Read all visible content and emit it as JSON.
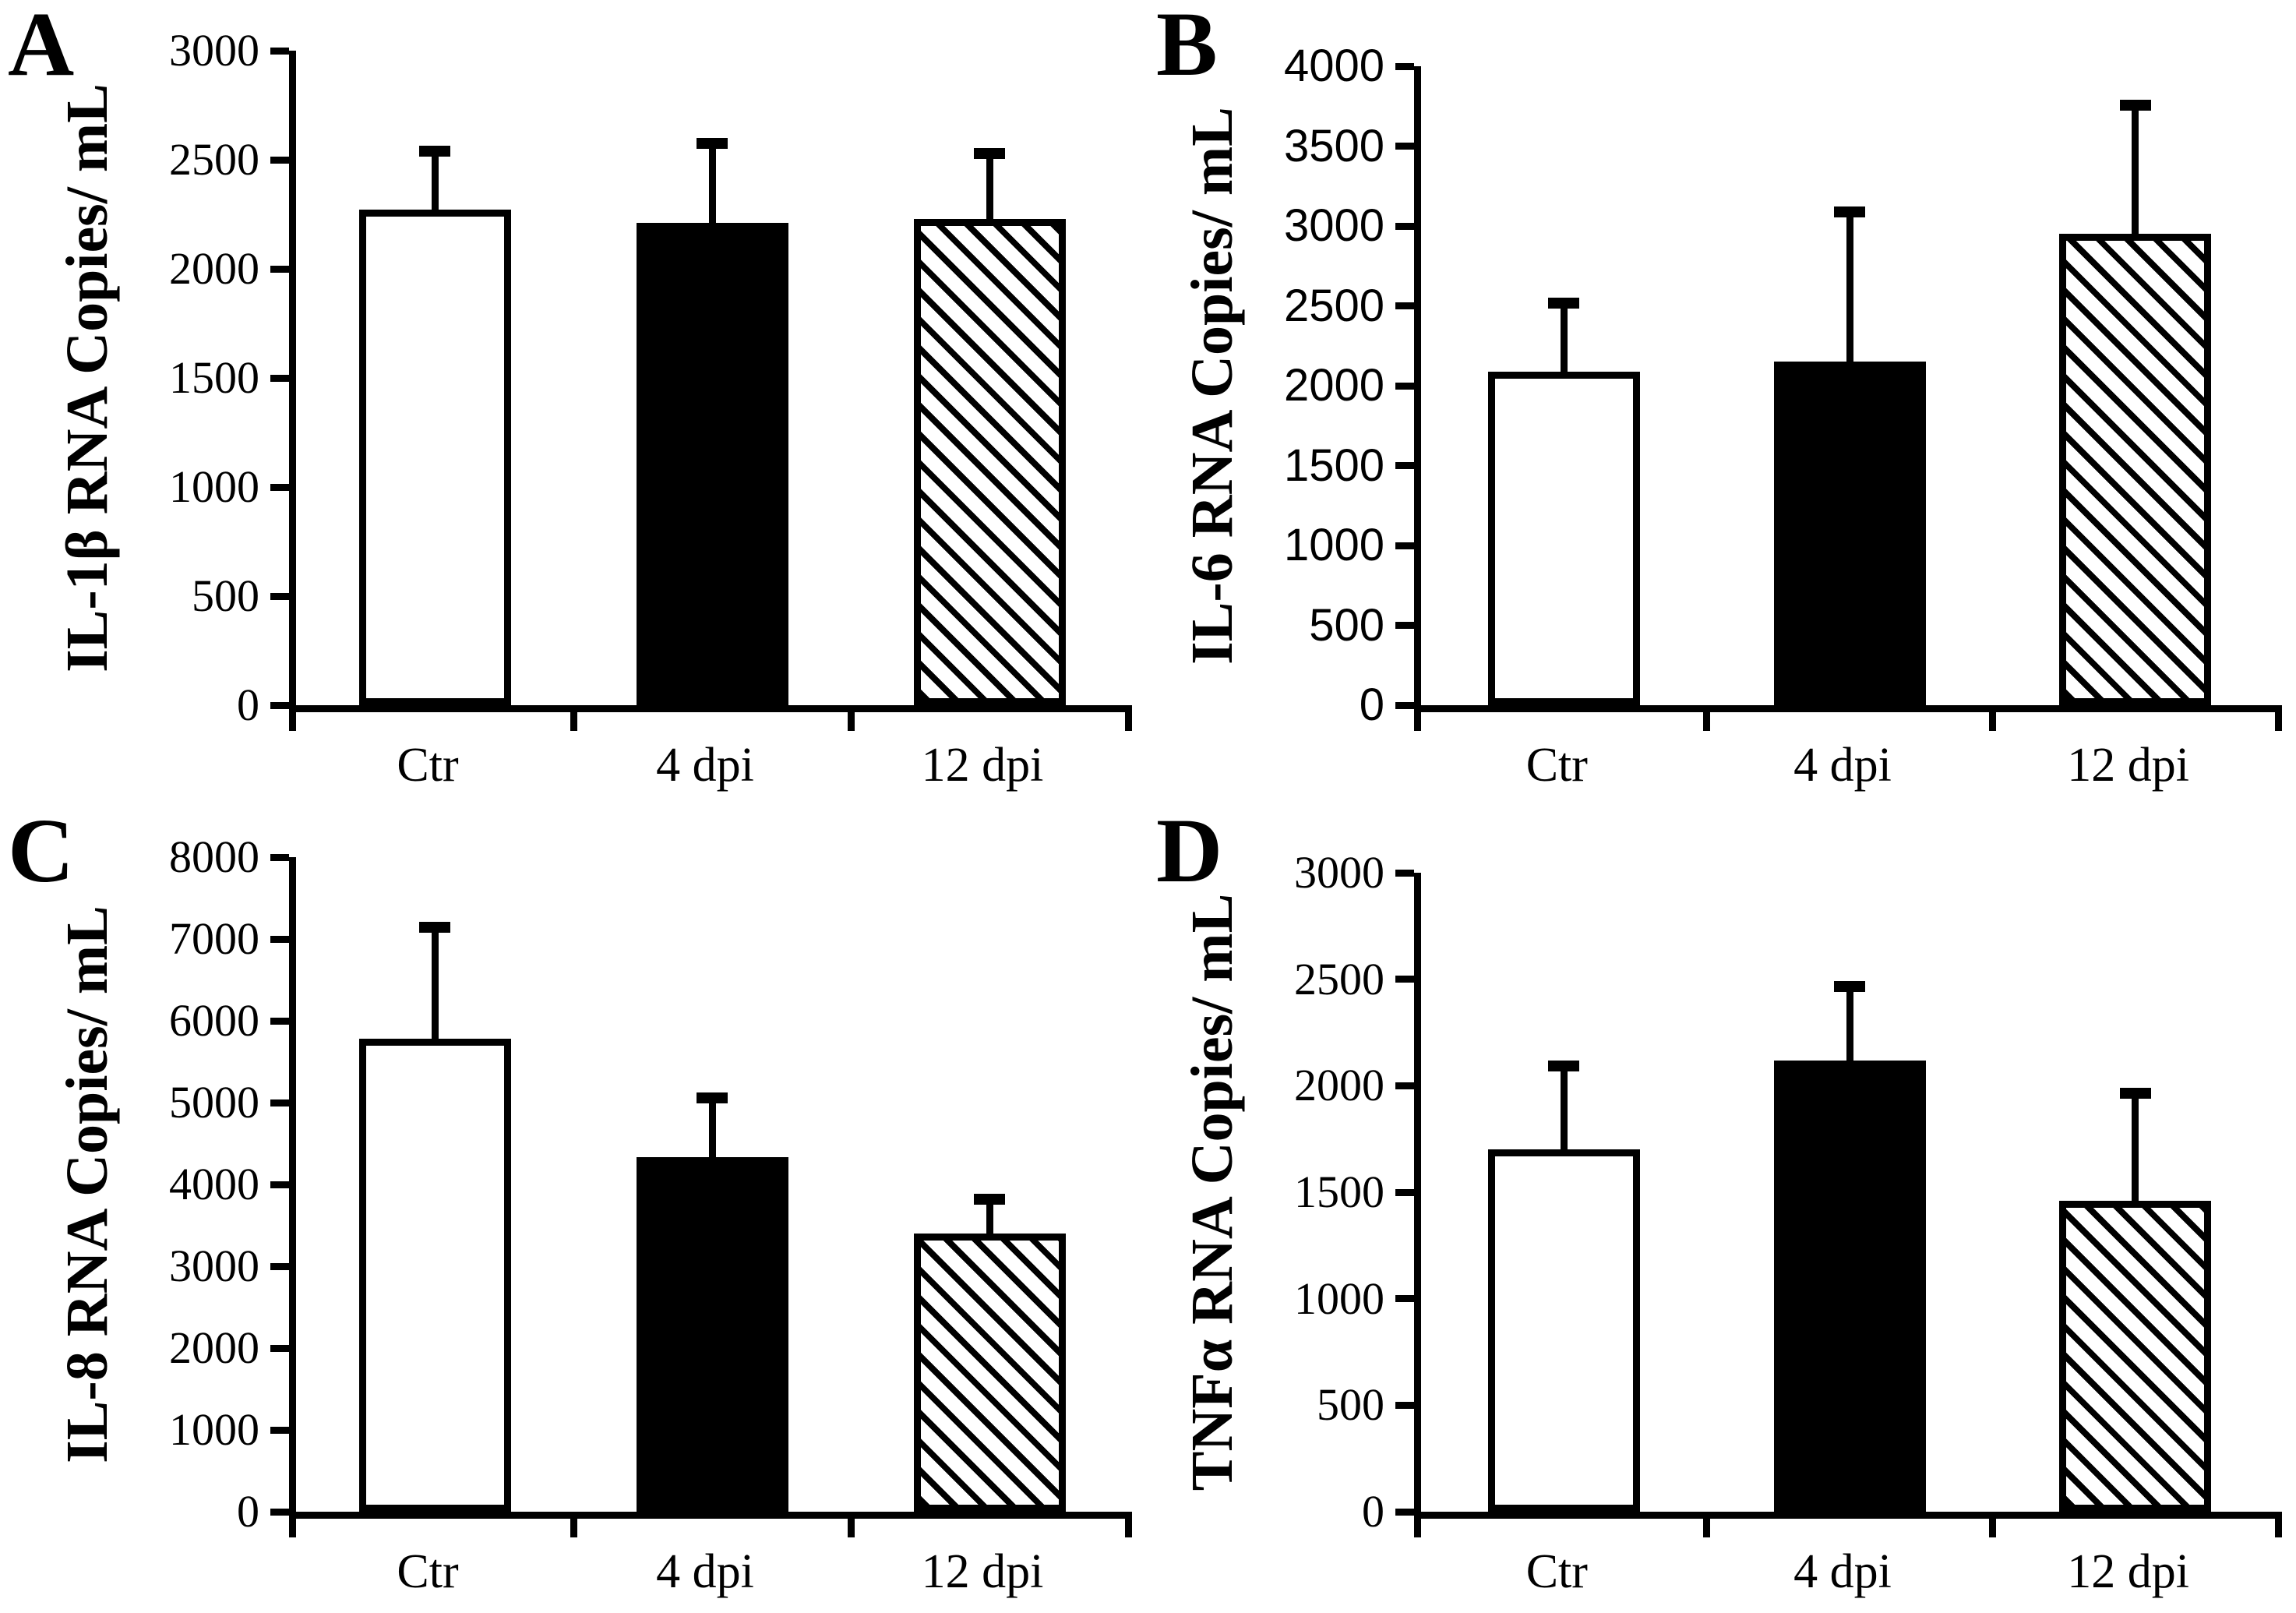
{
  "figure": {
    "background": "#ffffff",
    "ink_color": "#000000",
    "bar_fill_legend": [
      "white = Ctr",
      "black = 4 dpi",
      "hatched = 12 dpi"
    ]
  },
  "chart_data": [
    {
      "type": "bar",
      "panel_letter": "A",
      "ylabel": "IL-1β RNA Copies/ mL",
      "xlabel": "",
      "categories": [
        "Ctr",
        "4 dpi",
        "12 dpi"
      ],
      "values": [
        2270,
        2210,
        2230
      ],
      "errors_plus": [
        295,
        390,
        325
      ],
      "ylim": [
        0,
        3000
      ],
      "yticks": [
        0,
        500,
        1000,
        1500,
        2000,
        2500,
        3000
      ],
      "bar_styles": [
        "white",
        "black",
        "hatched"
      ],
      "grid": false,
      "legend": false,
      "error_bars": "upward only, capped"
    },
    {
      "type": "bar",
      "panel_letter": "B",
      "ylabel": "IL-6 RNA Copies/ mL",
      "xlabel": "",
      "categories": [
        "Ctr",
        "4 dpi",
        "12 dpi"
      ],
      "values": [
        2090,
        2150,
        2950
      ],
      "errors_plus": [
        460,
        970,
        840
      ],
      "ylim": [
        0,
        4000
      ],
      "yticks": [
        0,
        500,
        1000,
        1500,
        2000,
        2500,
        3000,
        3500,
        4000
      ],
      "bar_styles": [
        "white",
        "black",
        "hatched"
      ],
      "grid": false,
      "legend": false,
      "error_bars": "upward only, capped"
    },
    {
      "type": "bar",
      "panel_letter": "C",
      "ylabel": "IL-8 RNA Copies/ mL",
      "xlabel": "",
      "categories": [
        "Ctr",
        "4 dpi",
        "12 dpi"
      ],
      "values": [
        5780,
        4330,
        3400
      ],
      "errors_plus": [
        1430,
        790,
        490
      ],
      "ylim": [
        0,
        8000
      ],
      "yticks": [
        0,
        1000,
        2000,
        3000,
        4000,
        5000,
        6000,
        7000,
        8000
      ],
      "bar_styles": [
        "white",
        "black",
        "hatched"
      ],
      "grid": false,
      "legend": false,
      "error_bars": "upward only, capped"
    },
    {
      "type": "bar",
      "panel_letter": "D",
      "ylabel": "TNFα RNA Copies/ mL",
      "xlabel": "",
      "categories": [
        "Ctr",
        "4 dpi",
        "12 dpi"
      ],
      "values": [
        1700,
        2120,
        1460
      ],
      "errors_plus": [
        420,
        370,
        530
      ],
      "ylim": [
        0,
        3000
      ],
      "yticks": [
        0,
        500,
        1000,
        1500,
        2000,
        2500,
        3000
      ],
      "bar_styles": [
        "white",
        "black",
        "hatched"
      ],
      "grid": false,
      "legend": false,
      "error_bars": "upward only, capped"
    }
  ]
}
